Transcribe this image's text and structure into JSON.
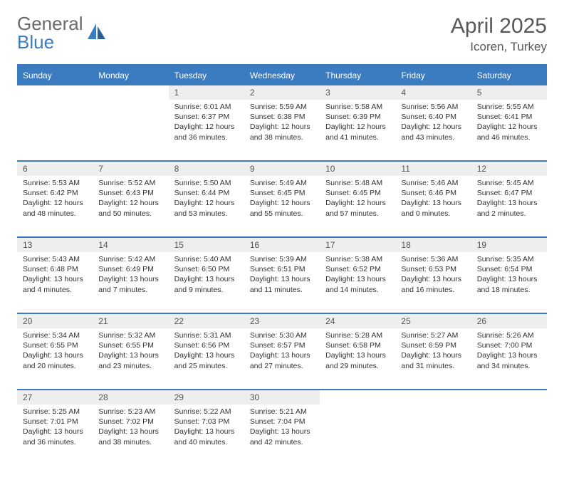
{
  "brand": {
    "part1": "General",
    "part2": "Blue"
  },
  "title": "April 2025",
  "location": "Icoren, Turkey",
  "colors": {
    "accent": "#3b7bbf",
    "header_bg": "#eeeeee",
    "text": "#333333"
  },
  "weekdays": [
    "Sunday",
    "Monday",
    "Tuesday",
    "Wednesday",
    "Thursday",
    "Friday",
    "Saturday"
  ],
  "grid": {
    "first_weekday_index": 2,
    "days_in_month": 30
  },
  "days": {
    "1": {
      "sunrise": "6:01 AM",
      "sunset": "6:37 PM",
      "daylight": "12 hours and 36 minutes."
    },
    "2": {
      "sunrise": "5:59 AM",
      "sunset": "6:38 PM",
      "daylight": "12 hours and 38 minutes."
    },
    "3": {
      "sunrise": "5:58 AM",
      "sunset": "6:39 PM",
      "daylight": "12 hours and 41 minutes."
    },
    "4": {
      "sunrise": "5:56 AM",
      "sunset": "6:40 PM",
      "daylight": "12 hours and 43 minutes."
    },
    "5": {
      "sunrise": "5:55 AM",
      "sunset": "6:41 PM",
      "daylight": "12 hours and 46 minutes."
    },
    "6": {
      "sunrise": "5:53 AM",
      "sunset": "6:42 PM",
      "daylight": "12 hours and 48 minutes."
    },
    "7": {
      "sunrise": "5:52 AM",
      "sunset": "6:43 PM",
      "daylight": "12 hours and 50 minutes."
    },
    "8": {
      "sunrise": "5:50 AM",
      "sunset": "6:44 PM",
      "daylight": "12 hours and 53 minutes."
    },
    "9": {
      "sunrise": "5:49 AM",
      "sunset": "6:45 PM",
      "daylight": "12 hours and 55 minutes."
    },
    "10": {
      "sunrise": "5:48 AM",
      "sunset": "6:45 PM",
      "daylight": "12 hours and 57 minutes."
    },
    "11": {
      "sunrise": "5:46 AM",
      "sunset": "6:46 PM",
      "daylight": "13 hours and 0 minutes."
    },
    "12": {
      "sunrise": "5:45 AM",
      "sunset": "6:47 PM",
      "daylight": "13 hours and 2 minutes."
    },
    "13": {
      "sunrise": "5:43 AM",
      "sunset": "6:48 PM",
      "daylight": "13 hours and 4 minutes."
    },
    "14": {
      "sunrise": "5:42 AM",
      "sunset": "6:49 PM",
      "daylight": "13 hours and 7 minutes."
    },
    "15": {
      "sunrise": "5:40 AM",
      "sunset": "6:50 PM",
      "daylight": "13 hours and 9 minutes."
    },
    "16": {
      "sunrise": "5:39 AM",
      "sunset": "6:51 PM",
      "daylight": "13 hours and 11 minutes."
    },
    "17": {
      "sunrise": "5:38 AM",
      "sunset": "6:52 PM",
      "daylight": "13 hours and 14 minutes."
    },
    "18": {
      "sunrise": "5:36 AM",
      "sunset": "6:53 PM",
      "daylight": "13 hours and 16 minutes."
    },
    "19": {
      "sunrise": "5:35 AM",
      "sunset": "6:54 PM",
      "daylight": "13 hours and 18 minutes."
    },
    "20": {
      "sunrise": "5:34 AM",
      "sunset": "6:55 PM",
      "daylight": "13 hours and 20 minutes."
    },
    "21": {
      "sunrise": "5:32 AM",
      "sunset": "6:55 PM",
      "daylight": "13 hours and 23 minutes."
    },
    "22": {
      "sunrise": "5:31 AM",
      "sunset": "6:56 PM",
      "daylight": "13 hours and 25 minutes."
    },
    "23": {
      "sunrise": "5:30 AM",
      "sunset": "6:57 PM",
      "daylight": "13 hours and 27 minutes."
    },
    "24": {
      "sunrise": "5:28 AM",
      "sunset": "6:58 PM",
      "daylight": "13 hours and 29 minutes."
    },
    "25": {
      "sunrise": "5:27 AM",
      "sunset": "6:59 PM",
      "daylight": "13 hours and 31 minutes."
    },
    "26": {
      "sunrise": "5:26 AM",
      "sunset": "7:00 PM",
      "daylight": "13 hours and 34 minutes."
    },
    "27": {
      "sunrise": "5:25 AM",
      "sunset": "7:01 PM",
      "daylight": "13 hours and 36 minutes."
    },
    "28": {
      "sunrise": "5:23 AM",
      "sunset": "7:02 PM",
      "daylight": "13 hours and 38 minutes."
    },
    "29": {
      "sunrise": "5:22 AM",
      "sunset": "7:03 PM",
      "daylight": "13 hours and 40 minutes."
    },
    "30": {
      "sunrise": "5:21 AM",
      "sunset": "7:04 PM",
      "daylight": "13 hours and 42 minutes."
    }
  },
  "labels": {
    "sunrise": "Sunrise:",
    "sunset": "Sunset:",
    "daylight": "Daylight:"
  }
}
